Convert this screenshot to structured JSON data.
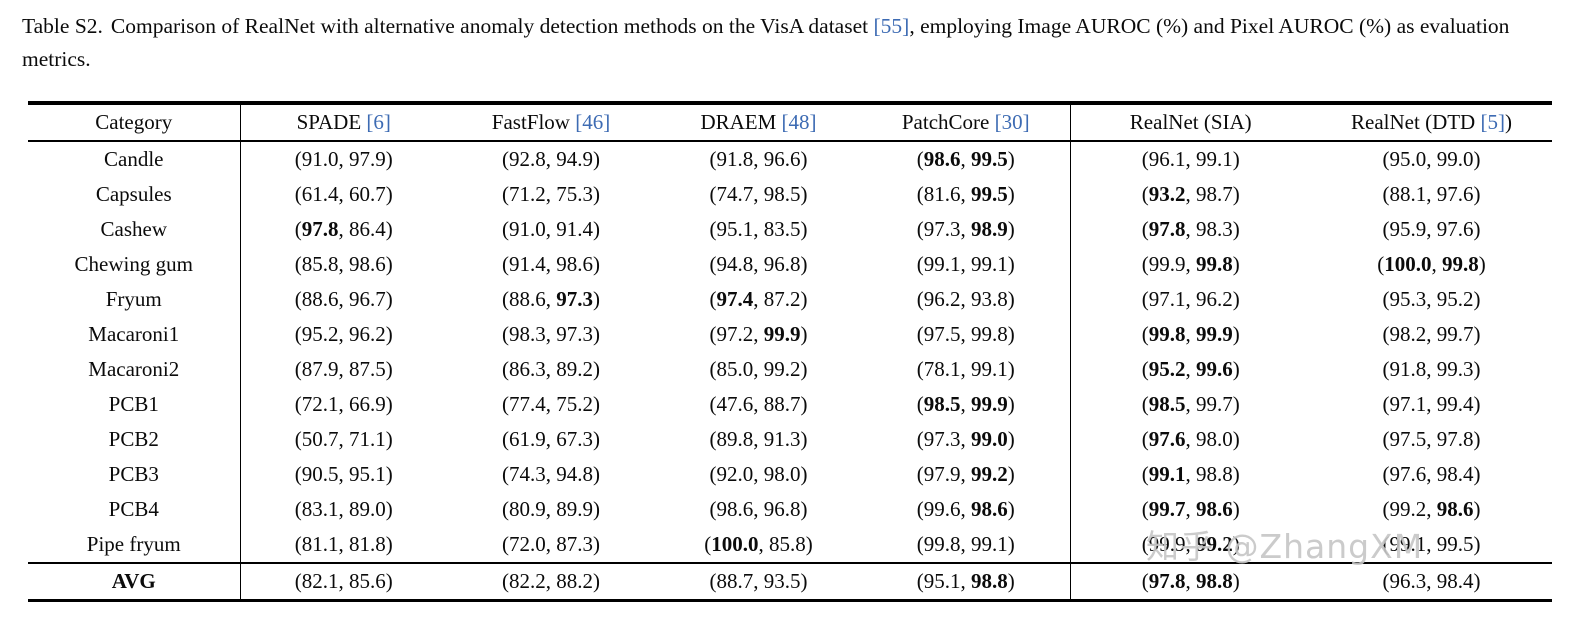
{
  "caption": {
    "label": "Table S2.",
    "before_ref": "Comparison of RealNet with alternative anomaly detection methods on the VisA dataset ",
    "ref": "[55]",
    "after_ref": ", employing Image AUROC (%) and Pixel AUROC (%) as evaluation metrics."
  },
  "colors": {
    "ref_blue": "#3d6bb3",
    "watermark_gray": "#c6c6c6",
    "rule_black": "#000000"
  },
  "watermark": {
    "text": "知乎 @ZhangXM"
  },
  "table": {
    "cell_format": "[image_auroc, pixel_auroc, bold_image, bold_pixel]",
    "headers": [
      {
        "text": "Category",
        "ref": "",
        "suffix": ""
      },
      {
        "text": "SPADE ",
        "ref": "[6]",
        "suffix": ""
      },
      {
        "text": "FastFlow ",
        "ref": "[46]",
        "suffix": ""
      },
      {
        "text": "DRAEM ",
        "ref": "[48]",
        "suffix": ""
      },
      {
        "text": "PatchCore ",
        "ref": "[30]",
        "suffix": ""
      },
      {
        "text": "RealNet (SIA)",
        "ref": "",
        "suffix": ""
      },
      {
        "text": "RealNet (DTD ",
        "ref": "[5]",
        "suffix": ")"
      }
    ],
    "rows": [
      {
        "category": "Candle",
        "avg": false,
        "cells": [
          [
            "91.0",
            "97.9",
            0,
            0
          ],
          [
            "92.8",
            "94.9",
            0,
            0
          ],
          [
            "91.8",
            "96.6",
            0,
            0
          ],
          [
            "98.6",
            "99.5",
            1,
            1
          ],
          [
            "96.1",
            "99.1",
            0,
            0
          ],
          [
            "95.0",
            "99.0",
            0,
            0
          ]
        ]
      },
      {
        "category": "Capsules",
        "avg": false,
        "cells": [
          [
            "61.4",
            "60.7",
            0,
            0
          ],
          [
            "71.2",
            "75.3",
            0,
            0
          ],
          [
            "74.7",
            "98.5",
            0,
            0
          ],
          [
            "81.6",
            "99.5",
            0,
            1
          ],
          [
            "93.2",
            "98.7",
            1,
            0
          ],
          [
            "88.1",
            "97.6",
            0,
            0
          ]
        ]
      },
      {
        "category": "Cashew",
        "avg": false,
        "cells": [
          [
            "97.8",
            "86.4",
            1,
            0
          ],
          [
            "91.0",
            "91.4",
            0,
            0
          ],
          [
            "95.1",
            "83.5",
            0,
            0
          ],
          [
            "97.3",
            "98.9",
            0,
            1
          ],
          [
            "97.8",
            "98.3",
            1,
            0
          ],
          [
            "95.9",
            "97.6",
            0,
            0
          ]
        ]
      },
      {
        "category": "Chewing gum",
        "avg": false,
        "cells": [
          [
            "85.8",
            "98.6",
            0,
            0
          ],
          [
            "91.4",
            "98.6",
            0,
            0
          ],
          [
            "94.8",
            "96.8",
            0,
            0
          ],
          [
            "99.1",
            "99.1",
            0,
            0
          ],
          [
            "99.9",
            "99.8",
            0,
            1
          ],
          [
            "100.0",
            "99.8",
            1,
            1
          ]
        ]
      },
      {
        "category": "Fryum",
        "avg": false,
        "cells": [
          [
            "88.6",
            "96.7",
            0,
            0
          ],
          [
            "88.6",
            "97.3",
            0,
            1
          ],
          [
            "97.4",
            "87.2",
            1,
            0
          ],
          [
            "96.2",
            "93.8",
            0,
            0
          ],
          [
            "97.1",
            "96.2",
            0,
            0
          ],
          [
            "95.3",
            "95.2",
            0,
            0
          ]
        ]
      },
      {
        "category": "Macaroni1",
        "avg": false,
        "cells": [
          [
            "95.2",
            "96.2",
            0,
            0
          ],
          [
            "98.3",
            "97.3",
            0,
            0
          ],
          [
            "97.2",
            "99.9",
            0,
            1
          ],
          [
            "97.5",
            "99.8",
            0,
            0
          ],
          [
            "99.8",
            "99.9",
            1,
            1
          ],
          [
            "98.2",
            "99.7",
            0,
            0
          ]
        ]
      },
      {
        "category": "Macaroni2",
        "avg": false,
        "cells": [
          [
            "87.9",
            "87.5",
            0,
            0
          ],
          [
            "86.3",
            "89.2",
            0,
            0
          ],
          [
            "85.0",
            "99.2",
            0,
            0
          ],
          [
            "78.1",
            "99.1",
            0,
            0
          ],
          [
            "95.2",
            "99.6",
            1,
            1
          ],
          [
            "91.8",
            "99.3",
            0,
            0
          ]
        ]
      },
      {
        "category": "PCB1",
        "avg": false,
        "cells": [
          [
            "72.1",
            "66.9",
            0,
            0
          ],
          [
            "77.4",
            "75.2",
            0,
            0
          ],
          [
            "47.6",
            "88.7",
            0,
            0
          ],
          [
            "98.5",
            "99.9",
            1,
            1
          ],
          [
            "98.5",
            "99.7",
            1,
            0
          ],
          [
            "97.1",
            "99.4",
            0,
            0
          ]
        ]
      },
      {
        "category": "PCB2",
        "avg": false,
        "cells": [
          [
            "50.7",
            "71.1",
            0,
            0
          ],
          [
            "61.9",
            "67.3",
            0,
            0
          ],
          [
            "89.8",
            "91.3",
            0,
            0
          ],
          [
            "97.3",
            "99.0",
            0,
            1
          ],
          [
            "97.6",
            "98.0",
            1,
            0
          ],
          [
            "97.5",
            "97.8",
            0,
            0
          ]
        ]
      },
      {
        "category": "PCB3",
        "avg": false,
        "cells": [
          [
            "90.5",
            "95.1",
            0,
            0
          ],
          [
            "74.3",
            "94.8",
            0,
            0
          ],
          [
            "92.0",
            "98.0",
            0,
            0
          ],
          [
            "97.9",
            "99.2",
            0,
            1
          ],
          [
            "99.1",
            "98.8",
            1,
            0
          ],
          [
            "97.6",
            "98.4",
            0,
            0
          ]
        ]
      },
      {
        "category": "PCB4",
        "avg": false,
        "cells": [
          [
            "83.1",
            "89.0",
            0,
            0
          ],
          [
            "80.9",
            "89.9",
            0,
            0
          ],
          [
            "98.6",
            "96.8",
            0,
            0
          ],
          [
            "99.6",
            "98.6",
            0,
            1
          ],
          [
            "99.7",
            "98.6",
            1,
            1
          ],
          [
            "99.2",
            "98.6",
            0,
            1
          ]
        ]
      },
      {
        "category": "Pipe fryum",
        "avg": false,
        "cells": [
          [
            "81.1",
            "81.8",
            0,
            0
          ],
          [
            "72.0",
            "87.3",
            0,
            0
          ],
          [
            "100.0",
            "85.8",
            1,
            0
          ],
          [
            "99.8",
            "99.1",
            0,
            0
          ],
          [
            "99.9",
            "99.2",
            0,
            1
          ],
          [
            "99.1",
            "99.5",
            0,
            0
          ]
        ]
      },
      {
        "category": "AVG",
        "avg": true,
        "cells": [
          [
            "82.1",
            "85.6",
            0,
            0
          ],
          [
            "82.2",
            "88.2",
            0,
            0
          ],
          [
            "88.7",
            "93.5",
            0,
            0
          ],
          [
            "95.1",
            "98.8",
            0,
            1
          ],
          [
            "97.8",
            "98.8",
            1,
            1
          ],
          [
            "96.3",
            "98.4",
            0,
            0
          ]
        ]
      }
    ]
  }
}
